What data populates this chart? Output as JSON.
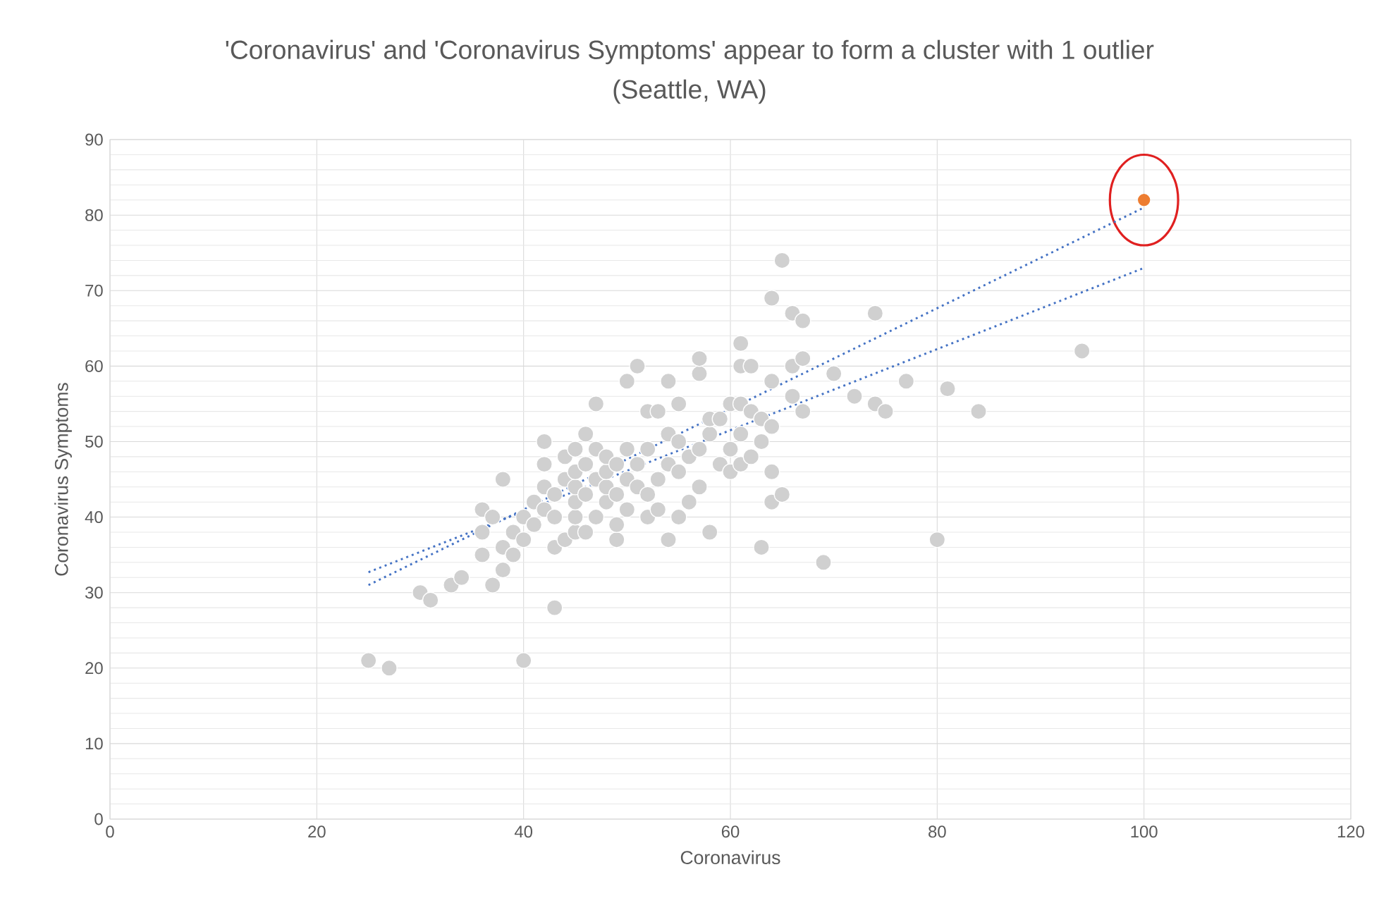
{
  "chart_data": {
    "type": "scatter",
    "title": "'Coronavirus' and 'Coronavirus Symptoms' appear to form a cluster with 1 outlier",
    "subtitle": "(Seattle, WA)",
    "xlabel": "Coronavirus",
    "ylabel": "Coronavirus Symptoms",
    "xlim": [
      0,
      120
    ],
    "ylim": [
      0,
      90
    ],
    "xticks": [
      0,
      20,
      40,
      60,
      80,
      100,
      120
    ],
    "yticks": [
      0,
      10,
      20,
      30,
      40,
      50,
      60,
      70,
      80,
      90
    ],
    "grid": true,
    "marker": "circle",
    "series": [
      {
        "color": "#d0d0d0",
        "x": [
          25,
          27,
          40,
          43,
          30,
          31,
          33,
          34,
          37,
          38,
          36,
          38,
          39,
          36,
          36,
          38,
          37,
          39,
          40,
          40,
          41,
          41,
          42,
          42,
          42,
          42,
          43,
          43,
          43,
          44,
          44,
          44,
          45,
          45,
          45,
          45,
          45,
          45,
          46,
          46,
          46,
          46,
          47,
          47,
          47,
          47,
          48,
          48,
          48,
          48,
          49,
          49,
          49,
          49,
          50,
          50,
          50,
          50,
          51,
          51,
          51,
          52,
          52,
          52,
          52,
          53,
          53,
          53,
          54,
          54,
          54,
          54,
          55,
          55,
          55,
          55,
          56,
          56,
          57,
          57,
          57,
          57,
          58,
          58,
          58,
          59,
          59,
          60,
          60,
          60,
          61,
          61,
          61,
          61,
          61,
          62,
          62,
          62,
          63,
          63,
          63,
          64,
          64,
          64,
          64,
          64,
          65,
          65,
          66,
          66,
          66,
          67,
          67,
          67,
          69,
          70,
          72,
          74,
          74,
          75,
          77,
          80,
          81,
          84,
          94
        ],
        "values": [
          21,
          20,
          21,
          28,
          30,
          29,
          31,
          32,
          31,
          33,
          35,
          36,
          35,
          38,
          41,
          45,
          40,
          38,
          37,
          40,
          39,
          42,
          41,
          44,
          47,
          50,
          36,
          40,
          43,
          45,
          48,
          37,
          38,
          40,
          42,
          44,
          46,
          49,
          38,
          43,
          47,
          51,
          40,
          45,
          49,
          55,
          42,
          44,
          46,
          48,
          37,
          39,
          43,
          47,
          41,
          45,
          49,
          58,
          44,
          47,
          60,
          40,
          43,
          49,
          54,
          41,
          45,
          54,
          37,
          47,
          51,
          58,
          40,
          46,
          50,
          55,
          42,
          48,
          44,
          49,
          59,
          61,
          38,
          51,
          53,
          47,
          53,
          46,
          49,
          55,
          47,
          51,
          55,
          60,
          63,
          48,
          54,
          60,
          36,
          53,
          50,
          42,
          46,
          52,
          58,
          69,
          43,
          74,
          56,
          60,
          67,
          54,
          61,
          66,
          34,
          59,
          56,
          55,
          67,
          54,
          58,
          37,
          57,
          54,
          62
        ]
      },
      {
        "color": "#ed7d31",
        "x": [
          100
        ],
        "values": [
          82
        ]
      },
      {
        "type": "line",
        "color": "#4472c4",
        "line_style": "dotted",
        "marker": "none",
        "x": [
          25,
          100
        ],
        "values": [
          31,
          81
        ]
      },
      {
        "type": "line",
        "color": "#4472c4",
        "line_style": "dotted",
        "marker": "none",
        "x": [
          25,
          100
        ],
        "values": [
          32.7,
          73
        ]
      }
    ]
  }
}
